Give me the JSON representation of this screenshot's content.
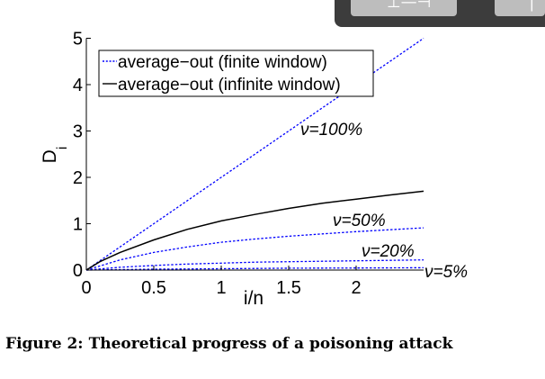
{
  "toolbar": {
    "buttons": [
      {
        "icon": "toolbar-button-icon"
      },
      {
        "icon": "toolbar-button-icon"
      }
    ]
  },
  "chart_data": {
    "type": "line",
    "title": "",
    "xlabel": "i/n",
    "ylabel": "D_i",
    "xlim": [
      0,
      2.5
    ],
    "ylim": [
      0,
      5
    ],
    "xticks": [
      0,
      0.5,
      1,
      1.5,
      2
    ],
    "yticks": [
      0,
      1,
      2,
      3,
      4,
      5
    ],
    "grid": false,
    "legend": {
      "placement": "top-left",
      "entries": [
        {
          "label": "average−out (finite window)",
          "style": "dotted",
          "color": "#0000ff"
        },
        {
          "label": "average−out (infinite window)",
          "style": "solid",
          "color": "#000000"
        }
      ]
    },
    "series": [
      {
        "annotation": "ν=100%",
        "style": "dotted",
        "color": "#0000ff",
        "x": [
          0,
          0.5,
          1,
          1.5,
          2,
          2.5
        ],
        "y": [
          0,
          1.0,
          2.0,
          3.0,
          4.0,
          5.0
        ]
      },
      {
        "annotation": "ν=50%",
        "style": "dotted",
        "color": "#0000ff",
        "x": [
          0,
          0.25,
          0.5,
          0.75,
          1,
          1.25,
          1.5,
          1.75,
          2,
          2.25,
          2.5
        ],
        "y": [
          0,
          0.22,
          0.38,
          0.5,
          0.6,
          0.67,
          0.73,
          0.78,
          0.83,
          0.87,
          0.91
        ]
      },
      {
        "annotation": "ν=20%",
        "style": "dotted",
        "color": "#0000ff",
        "x": [
          0,
          0.25,
          0.5,
          0.75,
          1,
          1.25,
          1.5,
          1.75,
          2,
          2.25,
          2.5
        ],
        "y": [
          0,
          0.06,
          0.1,
          0.13,
          0.15,
          0.17,
          0.18,
          0.19,
          0.2,
          0.21,
          0.22
        ]
      },
      {
        "annotation": "ν=5%",
        "style": "dotted",
        "color": "#0000ff",
        "x": [
          0,
          0.5,
          1,
          1.5,
          2,
          2.5
        ],
        "y": [
          0,
          0.02,
          0.03,
          0.04,
          0.045,
          0.05
        ]
      },
      {
        "annotation": "",
        "style": "solid",
        "color": "#000000",
        "x": [
          0,
          0.1,
          0.25,
          0.5,
          0.75,
          1,
          1.25,
          1.5,
          1.75,
          2,
          2.25,
          2.5
        ],
        "y": [
          0,
          0.18,
          0.38,
          0.65,
          0.88,
          1.06,
          1.2,
          1.33,
          1.44,
          1.53,
          1.62,
          1.7
        ]
      }
    ]
  },
  "caption": {
    "label": "Figure 2:",
    "text": "Theoretical progress of a poisoning attack"
  }
}
